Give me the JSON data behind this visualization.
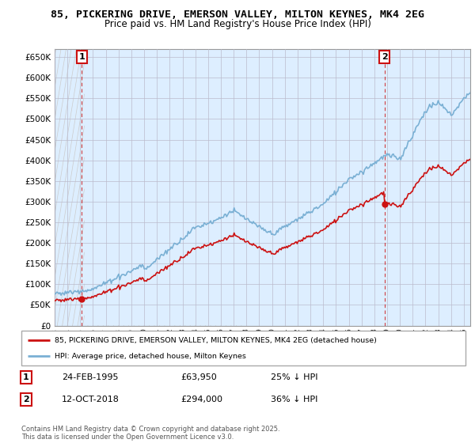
{
  "title": "85, PICKERING DRIVE, EMERSON VALLEY, MILTON KEYNES, MK4 2EG",
  "subtitle": "Price paid vs. HM Land Registry's House Price Index (HPI)",
  "ylim": [
    0,
    670000
  ],
  "yticks": [
    0,
    50000,
    100000,
    150000,
    200000,
    250000,
    300000,
    350000,
    400000,
    450000,
    500000,
    550000,
    600000,
    650000
  ],
  "ytick_labels": [
    "£0",
    "£50K",
    "£100K",
    "£150K",
    "£200K",
    "£250K",
    "£300K",
    "£350K",
    "£400K",
    "£450K",
    "£500K",
    "£550K",
    "£600K",
    "£650K"
  ],
  "xlim_start": 1993.0,
  "xlim_end": 2025.5,
  "xticks": [
    1993,
    1994,
    1995,
    1996,
    1997,
    1998,
    1999,
    2000,
    2001,
    2002,
    2003,
    2004,
    2005,
    2006,
    2007,
    2008,
    2009,
    2010,
    2011,
    2012,
    2013,
    2014,
    2015,
    2016,
    2017,
    2018,
    2019,
    2020,
    2021,
    2022,
    2023,
    2024,
    2025
  ],
  "p1_year": 1995,
  "p1_month": 2,
  "p1_price": 63950,
  "p2_year": 2018,
  "p2_month": 10,
  "p2_price": 294000,
  "hpi_color": "#7ab0d4",
  "price_color": "#cc1111",
  "dashed_color": "#cc1111",
  "bg_plot": "#ddeeff",
  "grid_color": "#bbbbcc",
  "legend_line1": "85, PICKERING DRIVE, EMERSON VALLEY, MILTON KEYNES, MK4 2EG (detached house)",
  "legend_line2": "HPI: Average price, detached house, Milton Keynes",
  "footer": "Contains HM Land Registry data © Crown copyright and database right 2025.\nThis data is licensed under the Open Government Licence v3.0.",
  "table_row1_date": "24-FEB-1995",
  "table_row1_price": "£63,950",
  "table_row1_pct": "25% ↓ HPI",
  "table_row2_date": "12-OCT-2018",
  "table_row2_price": "£294,000",
  "table_row2_pct": "36% ↓ HPI"
}
